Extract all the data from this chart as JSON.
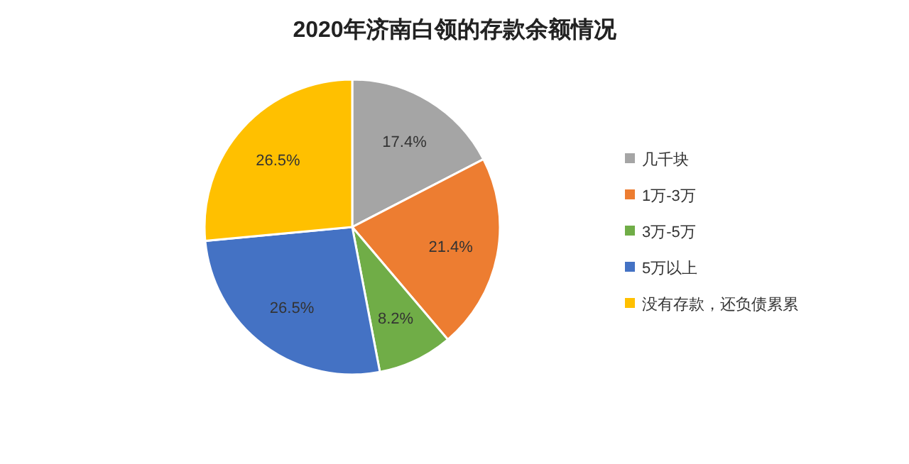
{
  "chart_data": {
    "type": "pie",
    "title": "2020年济南白领的存款余额情况",
    "categories": [
      "几千块",
      "1万-3万",
      "3万-5万",
      "5万以上",
      "没有存款，还负债累累"
    ],
    "values": [
      17.4,
      21.4,
      8.2,
      26.5,
      26.5
    ],
    "colors": [
      "#a5a5a5",
      "#ed7d31",
      "#70ad47",
      "#4472c4",
      "#ffc000"
    ],
    "value_labels": [
      "17.4%",
      "21.4%",
      "8.2%",
      "26.5%",
      "26.5%"
    ],
    "legend": "right"
  }
}
